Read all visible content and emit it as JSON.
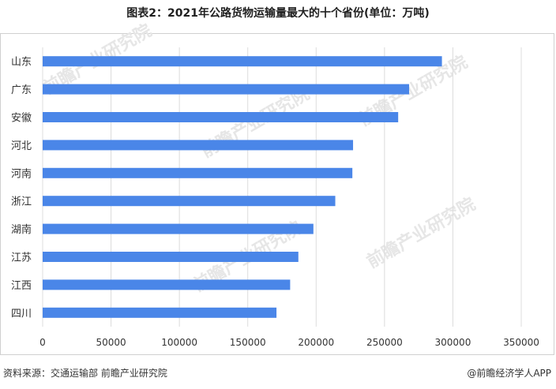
{
  "chart_data": {
    "type": "bar",
    "orientation": "horizontal",
    "title": "图表2：2021年公路货物运输量最大的十个省份(单位：万吨)",
    "categories": [
      "山东",
      "广东",
      "安徽",
      "河北",
      "河南",
      "浙江",
      "湖南",
      "江苏",
      "江西",
      "四川"
    ],
    "values": [
      292000,
      268000,
      260000,
      227000,
      226500,
      214000,
      198000,
      187000,
      181000,
      171000
    ],
    "xlim": [
      0,
      350000
    ],
    "xticks": [
      0,
      50000,
      100000,
      150000,
      200000,
      250000,
      300000,
      350000
    ],
    "xtick_labels": [
      "0",
      "50000",
      "100000",
      "150000",
      "200000",
      "250000",
      "300000",
      "350000"
    ],
    "grid": "vertical",
    "bar_color": "#4a86e8",
    "grid_color": "#dcdcdc"
  },
  "footer": {
    "source": "资料来源：交通运输部 前瞻产业研究院",
    "brand": "@前瞻经济学人APP"
  },
  "watermark": {
    "text": "前瞻产业研究院",
    "color": "#e6e6e6"
  }
}
